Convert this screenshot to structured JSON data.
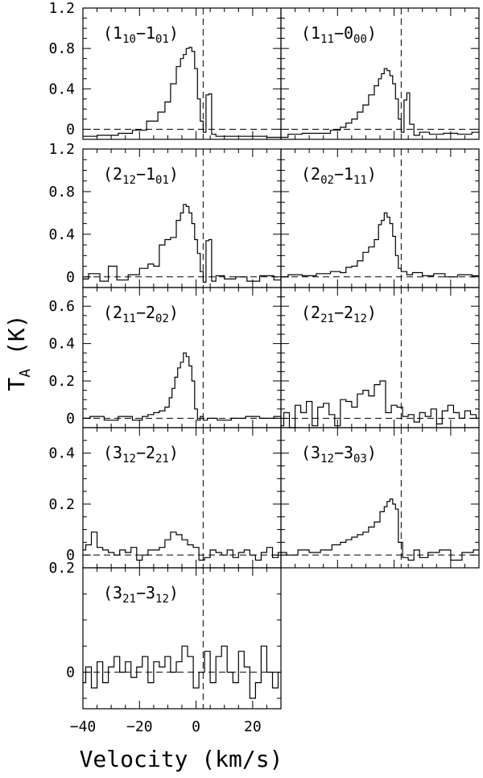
{
  "figure": {
    "ylabel": "T",
    "ylabel_sub": "A",
    "ylabel_unit": " (K)",
    "xlabel": "Velocity (km/s)"
  },
  "chart_data": [
    {
      "type": "line",
      "transition": {
        "a": "1",
        "a_sub": "10",
        "b": "1",
        "b_sub": "01"
      },
      "xlim": [
        -40,
        30
      ],
      "ylim": [
        -0.1,
        1.2
      ],
      "yticks": [
        0,
        0.4,
        0.8,
        1.2
      ],
      "yticklabels": [
        "0",
        "0.4",
        "0.8",
        "1.2"
      ],
      "x": [
        -40,
        -30,
        -25,
        -20,
        -15,
        -12,
        -10,
        -8,
        -6,
        -5,
        -4,
        -3,
        -2,
        -1,
        0,
        1,
        2,
        3,
        4,
        5,
        6,
        8,
        10,
        15,
        20,
        30
      ],
      "y": [
        -0.07,
        -0.06,
        -0.04,
        -0.01,
        0.08,
        0.17,
        0.27,
        0.45,
        0.62,
        0.7,
        0.74,
        0.8,
        0.81,
        0.77,
        0.6,
        0.3,
        0.08,
        -0.03,
        0.34,
        0.35,
        -0.05,
        -0.07,
        -0.07,
        -0.07,
        -0.07,
        -0.08
      ]
    },
    {
      "type": "line",
      "transition": {
        "a": "1",
        "a_sub": "11",
        "b": "0",
        "b_sub": "00"
      },
      "xlim": [
        -40,
        30
      ],
      "ylim": [
        -0.1,
        1.2
      ],
      "yticks": [],
      "yticklabels": [],
      "x": [
        -40,
        -35,
        -30,
        -25,
        -20,
        -18,
        -16,
        -14,
        -12,
        -10,
        -8,
        -6,
        -5,
        -4,
        -3,
        -2,
        -1,
        0,
        1,
        2,
        3,
        4,
        5,
        6,
        8,
        10,
        15,
        20,
        25,
        30
      ],
      "y": [
        -0.08,
        -0.05,
        -0.04,
        -0.04,
        -0.01,
        0.02,
        0.06,
        0.1,
        0.17,
        0.24,
        0.34,
        0.43,
        0.5,
        0.55,
        0.6,
        0.58,
        0.53,
        0.45,
        0.3,
        0.1,
        -0.03,
        0.29,
        0.36,
        0.05,
        -0.06,
        -0.03,
        -0.05,
        -0.04,
        -0.05,
        -0.03
      ]
    },
    {
      "type": "line",
      "transition": {
        "a": "2",
        "a_sub": "12",
        "b": "1",
        "b_sub": "01"
      },
      "xlim": [
        -40,
        30
      ],
      "ylim": [
        -0.1,
        1.2
      ],
      "yticks": [
        0,
        0.4,
        0.8,
        1.2
      ],
      "yticklabels": [
        "0",
        "0.4",
        "0.8",
        "1.2"
      ],
      "x": [
        -40,
        -36,
        -32,
        -30,
        -26,
        -22,
        -18,
        -16,
        -14,
        -12,
        -10,
        -8,
        -6,
        -5,
        -4,
        -3,
        -2,
        -1,
        0,
        1,
        2,
        3,
        4,
        5,
        6,
        8,
        12,
        16,
        20,
        25,
        30
      ],
      "y": [
        -0.02,
        0.03,
        -0.04,
        0.1,
        -0.03,
        0.02,
        0.08,
        0.12,
        0.1,
        0.3,
        0.35,
        0.37,
        0.53,
        0.6,
        0.68,
        0.66,
        0.6,
        0.5,
        0.35,
        0.22,
        0.05,
        -0.05,
        0.34,
        0.35,
        -0.04,
        0.01,
        -0.02,
        0.0,
        -0.04,
        0.01,
        -0.03
      ]
    },
    {
      "type": "line",
      "transition": {
        "a": "2",
        "a_sub": "02",
        "b": "1",
        "b_sub": "11"
      },
      "xlim": [
        -40,
        30
      ],
      "ylim": [
        -0.1,
        1.2
      ],
      "yticks": [],
      "yticklabels": [],
      "x": [
        -40,
        -35,
        -30,
        -25,
        -20,
        -18,
        -16,
        -14,
        -12,
        -10,
        -8,
        -6,
        -5,
        -4,
        -3,
        -2,
        -1,
        0,
        1,
        2,
        3,
        4,
        5,
        8,
        12,
        16,
        20,
        25,
        30
      ],
      "y": [
        0.0,
        0.02,
        0.01,
        0.03,
        0.05,
        0.04,
        0.09,
        0.1,
        0.15,
        0.23,
        0.28,
        0.35,
        0.49,
        0.53,
        0.6,
        0.56,
        0.5,
        0.38,
        0.2,
        0.08,
        0.05,
        0.05,
        0.02,
        0.04,
        0.01,
        0.03,
        0.0,
        0.02,
        0.01
      ]
    },
    {
      "type": "line",
      "transition": {
        "a": "2",
        "a_sub": "11",
        "b": "2",
        "b_sub": "02"
      },
      "xlim": [
        -40,
        30
      ],
      "ylim": [
        -0.05,
        0.7
      ],
      "yticks": [
        0,
        0.2,
        0.4,
        0.6
      ],
      "yticklabels": [
        "0",
        "0.2",
        "0.4",
        "0.6"
      ],
      "x": [
        -40,
        -35,
        -30,
        -25,
        -20,
        -18,
        -16,
        -14,
        -12,
        -10,
        -9,
        -8,
        -7,
        -6,
        -5,
        -4,
        -3,
        -2,
        -1,
        0,
        1,
        2,
        3,
        5,
        10,
        15,
        20,
        25,
        30
      ],
      "y": [
        0.0,
        0.01,
        -0.01,
        0.01,
        -0.01,
        0.01,
        0.02,
        0.03,
        0.04,
        0.06,
        0.11,
        0.16,
        0.22,
        0.27,
        0.3,
        0.35,
        0.33,
        0.28,
        0.2,
        0.05,
        -0.01,
        0.01,
        -0.01,
        0.0,
        -0.01,
        0.0,
        0.01,
        0.0,
        0.01
      ]
    },
    {
      "type": "line",
      "transition": {
        "a": "2",
        "a_sub": "21",
        "b": "2",
        "b_sub": "12"
      },
      "xlim": [
        -40,
        30
      ],
      "ylim": [
        -0.05,
        0.7
      ],
      "yticks": [],
      "yticklabels": [],
      "x": [
        -40,
        -38,
        -36,
        -34,
        -32,
        -30,
        -28,
        -26,
        -24,
        -22,
        -20,
        -18,
        -16,
        -14,
        -12,
        -10,
        -8,
        -6,
        -4,
        -2,
        0,
        2,
        4,
        6,
        8,
        10,
        12,
        14,
        16,
        18,
        20,
        22,
        24,
        26,
        28,
        30
      ],
      "y": [
        -0.04,
        0.03,
        -0.05,
        0.07,
        0.03,
        0.09,
        -0.04,
        0.06,
        0.08,
        0.02,
        -0.04,
        0.1,
        0.09,
        0.06,
        0.13,
        0.15,
        0.12,
        0.18,
        0.2,
        0.03,
        0.07,
        0.06,
        0.01,
        0.02,
        -0.02,
        0.03,
        0.01,
        0.05,
        -0.03,
        0.04,
        0.07,
        0.03,
        0.0,
        0.04,
        0.02,
        0.0
      ]
    },
    {
      "type": "line",
      "transition": {
        "a": "3",
        "a_sub": "12",
        "b": "2",
        "b_sub": "21"
      },
      "xlim": [
        -40,
        30
      ],
      "ylim": [
        -0.05,
        0.5
      ],
      "yticks": [
        0,
        0.2,
        0.4
      ],
      "yticklabels": [
        "0",
        "0.2",
        "0.4"
      ],
      "x": [
        -40,
        -38,
        -36,
        -34,
        -32,
        -30,
        -28,
        -26,
        -24,
        -22,
        -20,
        -18,
        -16,
        -14,
        -12,
        -10,
        -8,
        -6,
        -4,
        -2,
        0,
        2,
        4,
        6,
        8,
        10,
        12,
        14,
        16,
        18,
        20,
        22,
        24,
        26,
        28,
        30
      ],
      "y": [
        0.02,
        0.04,
        0.09,
        0.03,
        0.02,
        0.01,
        0.0,
        0.02,
        0.01,
        0.03,
        -0.02,
        0.0,
        0.02,
        0.02,
        0.03,
        0.06,
        0.09,
        0.08,
        0.06,
        0.04,
        0.03,
        -0.02,
        -0.01,
        0.02,
        0.01,
        0.0,
        0.02,
        -0.01,
        0.01,
        0.02,
        0.0,
        -0.02,
        0.01,
        0.03,
        -0.01,
        0.01
      ]
    },
    {
      "type": "line",
      "transition": {
        "a": "3",
        "a_sub": "12",
        "b": "3",
        "b_sub": "03"
      },
      "xlim": [
        -40,
        30
      ],
      "ylim": [
        -0.05,
        0.5
      ],
      "yticks": [],
      "yticklabels": [],
      "x": [
        -40,
        -36,
        -32,
        -28,
        -24,
        -20,
        -18,
        -16,
        -14,
        -12,
        -10,
        -8,
        -6,
        -4,
        -3,
        -2,
        -1,
        0,
        1,
        2,
        4,
        6,
        8,
        10,
        14,
        18,
        22,
        26,
        30
      ],
      "y": [
        0.01,
        0.0,
        0.02,
        0.01,
        0.02,
        0.04,
        0.05,
        0.06,
        0.07,
        0.08,
        0.09,
        0.11,
        0.13,
        0.17,
        0.19,
        0.21,
        0.22,
        0.2,
        0.18,
        0.05,
        -0.01,
        -0.02,
        0.02,
        -0.01,
        0.01,
        0.02,
        -0.02,
        0.01,
        0.02
      ]
    },
    {
      "type": "line",
      "transition": {
        "a": "3",
        "a_sub": "21",
        "b": "3",
        "b_sub": "12"
      },
      "xlim": [
        -40,
        30
      ],
      "ylim": [
        -0.07,
        0.2
      ],
      "yticks": [
        0,
        0.2
      ],
      "yticklabels": [
        "0",
        "0.2"
      ],
      "xticks": [
        -40,
        -20,
        0,
        20
      ],
      "xticklabels": [
        "−40",
        "−20",
        "0",
        "20"
      ],
      "x": [
        -40,
        -38,
        -36,
        -34,
        -32,
        -30,
        -28,
        -26,
        -24,
        -22,
        -20,
        -18,
        -16,
        -14,
        -12,
        -10,
        -8,
        -6,
        -4,
        -2,
        0,
        2,
        4,
        6,
        8,
        10,
        12,
        14,
        16,
        18,
        20,
        22,
        24,
        26,
        28,
        30
      ],
      "y": [
        -0.02,
        0.01,
        -0.03,
        0.02,
        -0.02,
        0.01,
        0.03,
        0.0,
        0.02,
        -0.01,
        0.01,
        0.03,
        -0.02,
        0.02,
        0.01,
        0.03,
        0.0,
        0.02,
        0.05,
        0.03,
        -0.03,
        0.0,
        0.04,
        -0.02,
        0.03,
        0.05,
        0.0,
        -0.02,
        0.04,
        0.01,
        -0.05,
        -0.02,
        0.05,
        0.0,
        -0.03,
        0.0
      ]
    }
  ]
}
